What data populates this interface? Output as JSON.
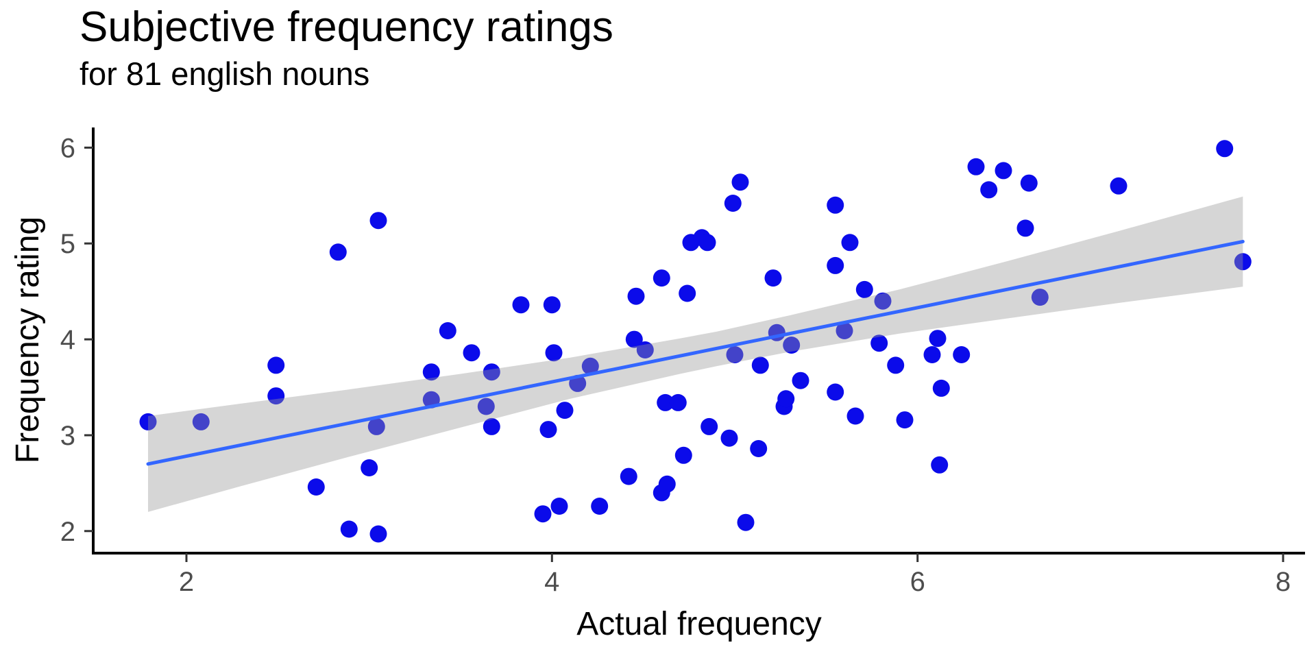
{
  "chart_data": {
    "type": "scatter",
    "title": "Subjective frequency ratings",
    "subtitle": "for 81 english nouns",
    "xlabel": "Actual frequency",
    "ylabel": "Frequency rating",
    "x_ticks": [
      2,
      4,
      6,
      8
    ],
    "y_ticks": [
      2,
      3,
      4,
      5,
      6
    ],
    "xlim": [
      1.49,
      8.12
    ],
    "ylim": [
      1.77,
      6.21
    ],
    "grid": false,
    "legend": false,
    "n_points": 81,
    "points": [
      [
        1.79,
        3.14
      ],
      [
        2.08,
        3.14
      ],
      [
        2.49,
        3.73
      ],
      [
        2.49,
        3.41
      ],
      [
        2.71,
        2.46
      ],
      [
        2.83,
        4.91
      ],
      [
        2.89,
        2.02
      ],
      [
        3.0,
        2.66
      ],
      [
        3.04,
        3.09
      ],
      [
        3.05,
        5.24
      ],
      [
        3.05,
        1.97
      ],
      [
        3.34,
        3.66
      ],
      [
        3.34,
        3.37
      ],
      [
        3.43,
        4.09
      ],
      [
        3.56,
        3.86
      ],
      [
        3.64,
        3.3
      ],
      [
        3.67,
        3.66
      ],
      [
        3.67,
        3.09
      ],
      [
        3.83,
        4.36
      ],
      [
        3.95,
        2.18
      ],
      [
        3.98,
        3.06
      ],
      [
        4.0,
        4.36
      ],
      [
        4.01,
        3.86
      ],
      [
        4.04,
        2.26
      ],
      [
        4.07,
        3.26
      ],
      [
        4.14,
        3.54
      ],
      [
        4.21,
        3.72
      ],
      [
        4.26,
        2.26
      ],
      [
        4.42,
        2.57
      ],
      [
        4.45,
        4.0
      ],
      [
        4.46,
        4.45
      ],
      [
        4.51,
        3.89
      ],
      [
        4.6,
        4.64
      ],
      [
        4.6,
        2.4
      ],
      [
        4.62,
        3.34
      ],
      [
        4.63,
        2.49
      ],
      [
        4.69,
        3.34
      ],
      [
        4.72,
        2.79
      ],
      [
        4.74,
        4.48
      ],
      [
        4.76,
        5.01
      ],
      [
        4.82,
        5.06
      ],
      [
        4.85,
        5.01
      ],
      [
        4.86,
        3.09
      ],
      [
        4.97,
        2.97
      ],
      [
        4.99,
        5.42
      ],
      [
        5.0,
        3.84
      ],
      [
        5.03,
        5.64
      ],
      [
        5.06,
        2.09
      ],
      [
        5.13,
        2.86
      ],
      [
        5.14,
        3.73
      ],
      [
        5.21,
        4.64
      ],
      [
        5.23,
        4.07
      ],
      [
        5.27,
        3.3
      ],
      [
        5.28,
        3.38
      ],
      [
        5.31,
        3.94
      ],
      [
        5.36,
        3.57
      ],
      [
        5.55,
        5.4
      ],
      [
        5.55,
        4.77
      ],
      [
        5.55,
        3.45
      ],
      [
        5.6,
        4.09
      ],
      [
        5.63,
        5.01
      ],
      [
        5.66,
        3.2
      ],
      [
        5.71,
        4.52
      ],
      [
        5.79,
        3.96
      ],
      [
        5.81,
        4.4
      ],
      [
        5.88,
        3.73
      ],
      [
        5.93,
        3.16
      ],
      [
        6.08,
        3.84
      ],
      [
        6.11,
        4.01
      ],
      [
        6.12,
        2.69
      ],
      [
        6.13,
        3.49
      ],
      [
        6.24,
        3.84
      ],
      [
        6.32,
        5.8
      ],
      [
        6.39,
        5.56
      ],
      [
        6.47,
        5.76
      ],
      [
        6.59,
        5.16
      ],
      [
        6.61,
        5.63
      ],
      [
        6.67,
        4.44
      ],
      [
        7.1,
        5.6
      ],
      [
        7.68,
        5.99
      ],
      [
        7.78,
        4.81
      ]
    ],
    "regression_line": {
      "x1": 1.79,
      "y1": 2.7,
      "x2": 7.78,
      "y2": 5.02
    },
    "ci_ribbon": {
      "x": [
        1.79,
        2.3,
        2.9,
        3.5,
        4.1,
        4.7,
        4.9,
        5.3,
        5.9,
        6.5,
        7.1,
        7.78
      ],
      "top": [
        3.2,
        3.33,
        3.48,
        3.64,
        3.81,
        4.01,
        4.08,
        4.25,
        4.52,
        4.82,
        5.13,
        5.49
      ],
      "bottom": [
        2.2,
        2.47,
        2.78,
        3.08,
        3.38,
        3.64,
        3.72,
        3.87,
        4.06,
        4.22,
        4.38,
        4.55
      ]
    },
    "colors": {
      "point": "#0b0bea",
      "line": "#3366FF",
      "ribbon": "rgba(153,153,153,0.40)",
      "axis": "#000000",
      "tick": "#333333",
      "tick_label": "#4d4d4d"
    }
  }
}
